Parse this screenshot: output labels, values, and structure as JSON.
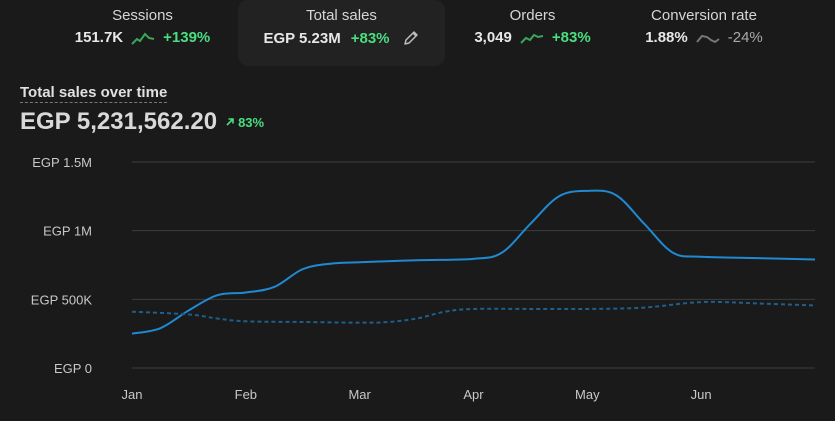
{
  "metrics": [
    {
      "label": "Sessions",
      "value": "151.7K",
      "delta": "+139%",
      "trend": "up"
    },
    {
      "label": "Total sales",
      "value": "EGP 5.23M",
      "delta": "+83%",
      "trend": "up"
    },
    {
      "label": "Orders",
      "value": "3,049",
      "delta": "+83%",
      "trend": "up"
    },
    {
      "label": "Conversion rate",
      "value": "1.88%",
      "delta": "-24%",
      "trend": "down"
    }
  ],
  "colors": {
    "primary_line": "#1f8ad1",
    "comparison_line": "#1e5f8c",
    "positive": "#4ade80",
    "neutral": "#a8a8a8"
  },
  "chart_data": {
    "type": "line",
    "title": "Total sales over time",
    "total": "EGP 5,231,562.20",
    "change": "83%",
    "xlabel": "",
    "ylabel": "",
    "ylim": [
      0,
      1500000
    ],
    "y_ticks": [
      {
        "value": 0,
        "label": "EGP 0"
      },
      {
        "value": 500000,
        "label": "EGP 500K"
      },
      {
        "value": 1000000,
        "label": "EGP 1M"
      },
      {
        "value": 1500000,
        "label": "EGP 1.5M"
      }
    ],
    "x_ticks": [
      "Jan",
      "Feb",
      "Mar",
      "Apr",
      "May",
      "Jun"
    ],
    "grid": true,
    "series": [
      {
        "style": "solid",
        "points": [
          [
            0,
            250000
          ],
          [
            0.25,
            290000
          ],
          [
            0.5,
            420000
          ],
          [
            0.75,
            530000
          ],
          [
            1,
            550000
          ],
          [
            1.25,
            590000
          ],
          [
            1.5,
            720000
          ],
          [
            1.75,
            760000
          ],
          [
            2,
            770000
          ],
          [
            2.5,
            785000
          ],
          [
            3,
            795000
          ],
          [
            3.25,
            840000
          ],
          [
            3.5,
            1050000
          ],
          [
            3.75,
            1250000
          ],
          [
            4,
            1290000
          ],
          [
            4.25,
            1260000
          ],
          [
            4.5,
            1050000
          ],
          [
            4.75,
            840000
          ],
          [
            5,
            810000
          ],
          [
            5.5,
            800000
          ],
          [
            6,
            790000
          ]
        ]
      },
      {
        "style": "dashed",
        "points": [
          [
            0,
            410000
          ],
          [
            0.5,
            390000
          ],
          [
            0.75,
            360000
          ],
          [
            1,
            340000
          ],
          [
            1.5,
            335000
          ],
          [
            2,
            330000
          ],
          [
            2.25,
            335000
          ],
          [
            2.5,
            360000
          ],
          [
            2.75,
            410000
          ],
          [
            3,
            430000
          ],
          [
            3.5,
            430000
          ],
          [
            4,
            430000
          ],
          [
            4.5,
            440000
          ],
          [
            5,
            480000
          ],
          [
            5.5,
            470000
          ],
          [
            6,
            455000
          ]
        ]
      }
    ]
  }
}
